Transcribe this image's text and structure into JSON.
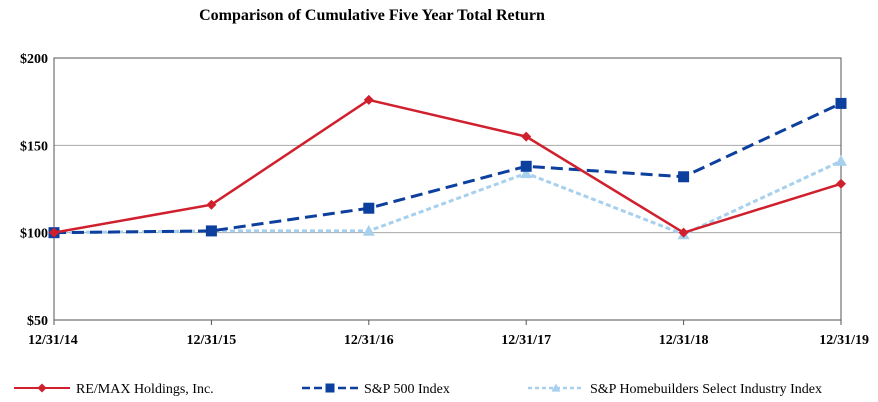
{
  "chart_data": {
    "type": "line",
    "title": "Comparison of Cumulative Five Year Total Return",
    "categories": [
      "12/31/14",
      "12/31/15",
      "12/31/16",
      "12/31/17",
      "12/31/18",
      "12/31/19"
    ],
    "ylim": [
      50,
      200
    ],
    "yticks": [
      50,
      100,
      150,
      200
    ],
    "ytick_labels": [
      "$50",
      "$100",
      "$150",
      "$200"
    ],
    "grid": true,
    "legend_position": "bottom",
    "series": [
      {
        "name": "RE/MAX Holdings, Inc.",
        "values": [
          100,
          116,
          176,
          155,
          100,
          128
        ],
        "color": "#d0202e",
        "dash": "solid",
        "marker": "diamond"
      },
      {
        "name": "S&P 500 Index",
        "values": [
          100,
          101,
          114,
          138,
          132,
          174
        ],
        "color": "#0d3f9e",
        "dash": "dashed",
        "marker": "square"
      },
      {
        "name": "S&P Homebuilders Select Industry Index",
        "values": [
          100,
          101,
          101,
          134,
          99,
          141
        ],
        "color": "#a6d0ee",
        "dash": "dashed",
        "marker": "triangle"
      }
    ]
  }
}
